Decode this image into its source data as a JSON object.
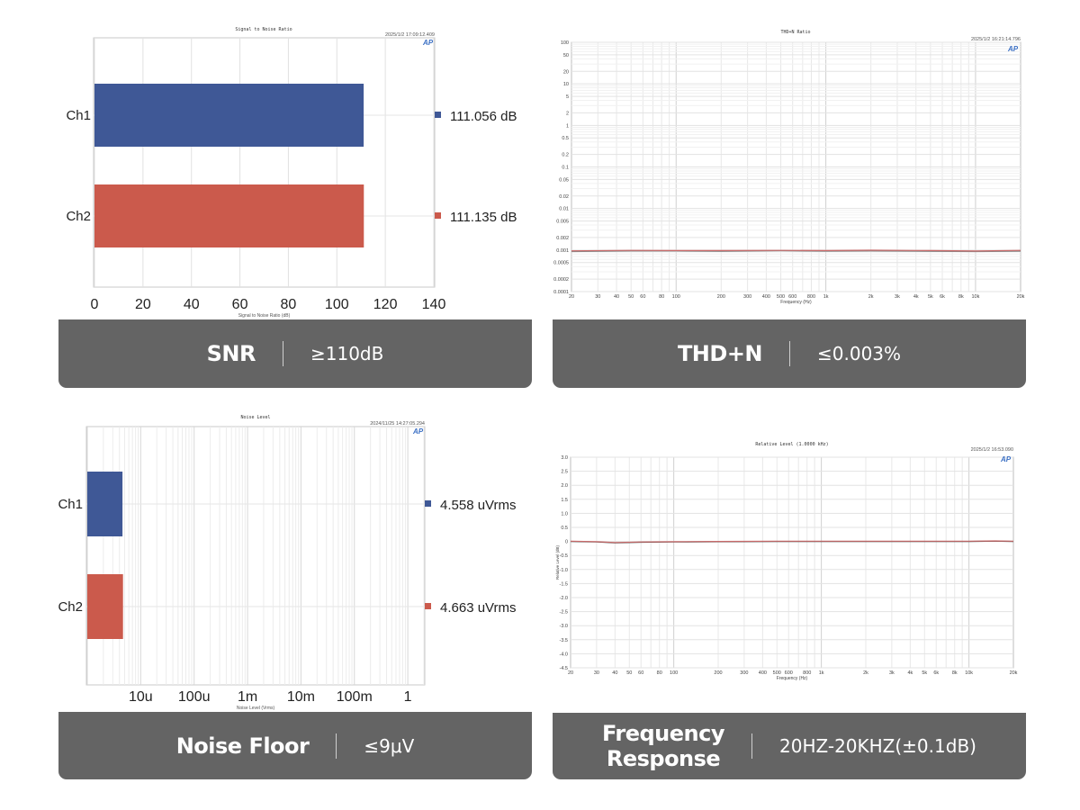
{
  "panels": [
    {
      "banner": {
        "name": "SNR",
        "spec": "≥110dB"
      },
      "chart_data": {
        "type": "bar",
        "orientation": "horizontal",
        "title": "Signal to Noise Ratio",
        "timestamp": "2025/1/2 17:09:12.409",
        "categories": [
          "Ch1",
          "Ch2"
        ],
        "values": [
          111.056,
          111.135
        ],
        "value_labels": [
          "111.056  dB",
          "111.135  dB"
        ],
        "colors": [
          "#3f5896",
          "#cb5a4c"
        ],
        "xlabel": "Signal to Noise Ratio (dB)",
        "xlim": [
          0,
          140
        ],
        "xticks": [
          "0",
          "20",
          "40",
          "60",
          "80",
          "100",
          "120",
          "140"
        ],
        "xtick_values": [
          0,
          20,
          40,
          60,
          80,
          100,
          120,
          140
        ],
        "grid": true,
        "logo": "ap-logo"
      }
    },
    {
      "banner": {
        "name": "THD+N",
        "spec": "≤0.003%"
      },
      "chart_data": {
        "type": "line",
        "title": "THD+N Ratio",
        "timestamp": "2025/1/2 16:21:14.796",
        "xscale": "log",
        "yscale": "log",
        "xlim": [
          20,
          20000
        ],
        "ylim": [
          0.0001,
          100
        ],
        "xlabel": "Frequency (Hz)",
        "xticks": [
          "20",
          "30",
          "40",
          "50",
          "60",
          "80",
          "100",
          "200",
          "300",
          "400",
          "500",
          "600",
          "800",
          "1k",
          "2k",
          "3k",
          "4k",
          "5k",
          "6k",
          "8k",
          "10k",
          "20k"
        ],
        "xtick_values": [
          20,
          30,
          40,
          50,
          60,
          80,
          100,
          200,
          300,
          400,
          500,
          600,
          800,
          1000,
          2000,
          3000,
          4000,
          5000,
          6000,
          8000,
          10000,
          20000
        ],
        "yticks": [
          "100",
          "50",
          "20",
          "10",
          "5",
          "2",
          "1",
          "0.5",
          "0.2",
          "0.1",
          "0.05",
          "0.02",
          "0.01",
          "0.005",
          "0.002",
          "0.001",
          "0.0005",
          "0.0002",
          "0.0001"
        ],
        "ytick_values": [
          100,
          50,
          20,
          10,
          5,
          2,
          1,
          0.5,
          0.2,
          0.1,
          0.05,
          0.02,
          0.01,
          0.005,
          0.002,
          0.001,
          0.0005,
          0.0002,
          0.0001
        ],
        "series": [
          {
            "color": "#8a8a8a",
            "x": [
              20,
              50,
              100,
              200,
              500,
              1000,
              2000,
              5000,
              10000,
              20000
            ],
            "y": [
              0.00092,
              0.00095,
              0.00095,
              0.00093,
              0.00096,
              0.00094,
              0.00095,
              0.00093,
              0.00092,
              0.00094
            ]
          },
          {
            "color": "#c96a6a",
            "x": [
              20,
              50,
              100,
              200,
              500,
              1000,
              2000,
              5000,
              10000,
              20000
            ],
            "y": [
              0.00096,
              0.00098,
              0.00097,
              0.00097,
              0.00098,
              0.00097,
              0.00099,
              0.00097,
              0.00095,
              0.00098
            ]
          }
        ],
        "grid": true,
        "logo": "ap-logo"
      }
    },
    {
      "banner": {
        "name": "Noise Floor",
        "spec": "≤9μV"
      },
      "chart_data": {
        "type": "bar",
        "orientation": "horizontal",
        "title": "Noise Level",
        "timestamp": "2024/11/25 14:27:05.294",
        "categories": [
          "Ch1",
          "Ch2"
        ],
        "values": [
          4.558e-06,
          4.663e-06
        ],
        "value_labels": [
          "4.558  uVrms",
          "4.663  uVrms"
        ],
        "colors": [
          "#3f5896",
          "#cb5a4c"
        ],
        "xscale": "log",
        "xlim": [
          1e-06,
          2
        ],
        "xlabel": "Noise Level (Vrms)",
        "xticks": [
          "10u",
          "100u",
          "1m",
          "10m",
          "100m",
          "1"
        ],
        "xtick_values": [
          1e-05,
          0.0001,
          0.001,
          0.01,
          0.1,
          1
        ],
        "grid": true,
        "logo": "ap-logo"
      }
    },
    {
      "banner": {
        "name_lines": [
          "Frequency",
          "Response"
        ],
        "spec": "20HZ-20KHZ(±0.1dB)"
      },
      "chart_data": {
        "type": "line",
        "title": "Relative Level (1.0000 kHz)",
        "timestamp": "2025/1/2 16:53.090",
        "xscale": "log",
        "xlim": [
          20,
          20000
        ],
        "ylim": [
          -4.5,
          3.0
        ],
        "xlabel": "Frequency (Hz)",
        "ylabel": "Relative Level (dB)",
        "xticks": [
          "20",
          "30",
          "40",
          "50",
          "60",
          "80",
          "100",
          "200",
          "300",
          "400",
          "500",
          "600",
          "800",
          "1k",
          "2k",
          "3k",
          "4k",
          "5k",
          "6k",
          "8k",
          "10k",
          "20k"
        ],
        "xtick_values": [
          20,
          30,
          40,
          50,
          60,
          80,
          100,
          200,
          300,
          400,
          500,
          600,
          800,
          1000,
          2000,
          3000,
          4000,
          5000,
          6000,
          8000,
          10000,
          20000
        ],
        "yticks": [
          "3.0",
          "2.5",
          "2.0",
          "1.5",
          "1.0",
          "0.5",
          "0",
          "-0.5",
          "-1.0",
          "-1.5",
          "-2.0",
          "-2.5",
          "-3.0",
          "-3.5",
          "-4.0",
          "-4.5"
        ],
        "ytick_values": [
          3,
          2.5,
          2,
          1.5,
          1,
          0.5,
          0,
          -0.5,
          -1,
          -1.5,
          -2,
          -2.5,
          -3,
          -3.5,
          -4,
          -4.5
        ],
        "series": [
          {
            "color": "#444444",
            "x": [
              20,
              30,
              40,
              60,
              100,
              200,
              500,
              1000,
              2000,
              5000,
              10000,
              15000,
              20000
            ],
            "y": [
              0.0,
              -0.02,
              -0.05,
              -0.03,
              -0.02,
              -0.01,
              0.0,
              0.0,
              0.0,
              0.0,
              0.0,
              0.01,
              0.0
            ]
          },
          {
            "color": "#c96a6a",
            "x": [
              20,
              30,
              40,
              60,
              100,
              200,
              500,
              1000,
              2000,
              5000,
              10000,
              15000,
              20000
            ],
            "y": [
              0.01,
              -0.01,
              -0.04,
              -0.02,
              -0.01,
              0.0,
              0.01,
              0.01,
              0.01,
              0.01,
              0.01,
              0.02,
              0.01
            ]
          }
        ],
        "grid": true,
        "logo": "ap-logo"
      }
    }
  ]
}
